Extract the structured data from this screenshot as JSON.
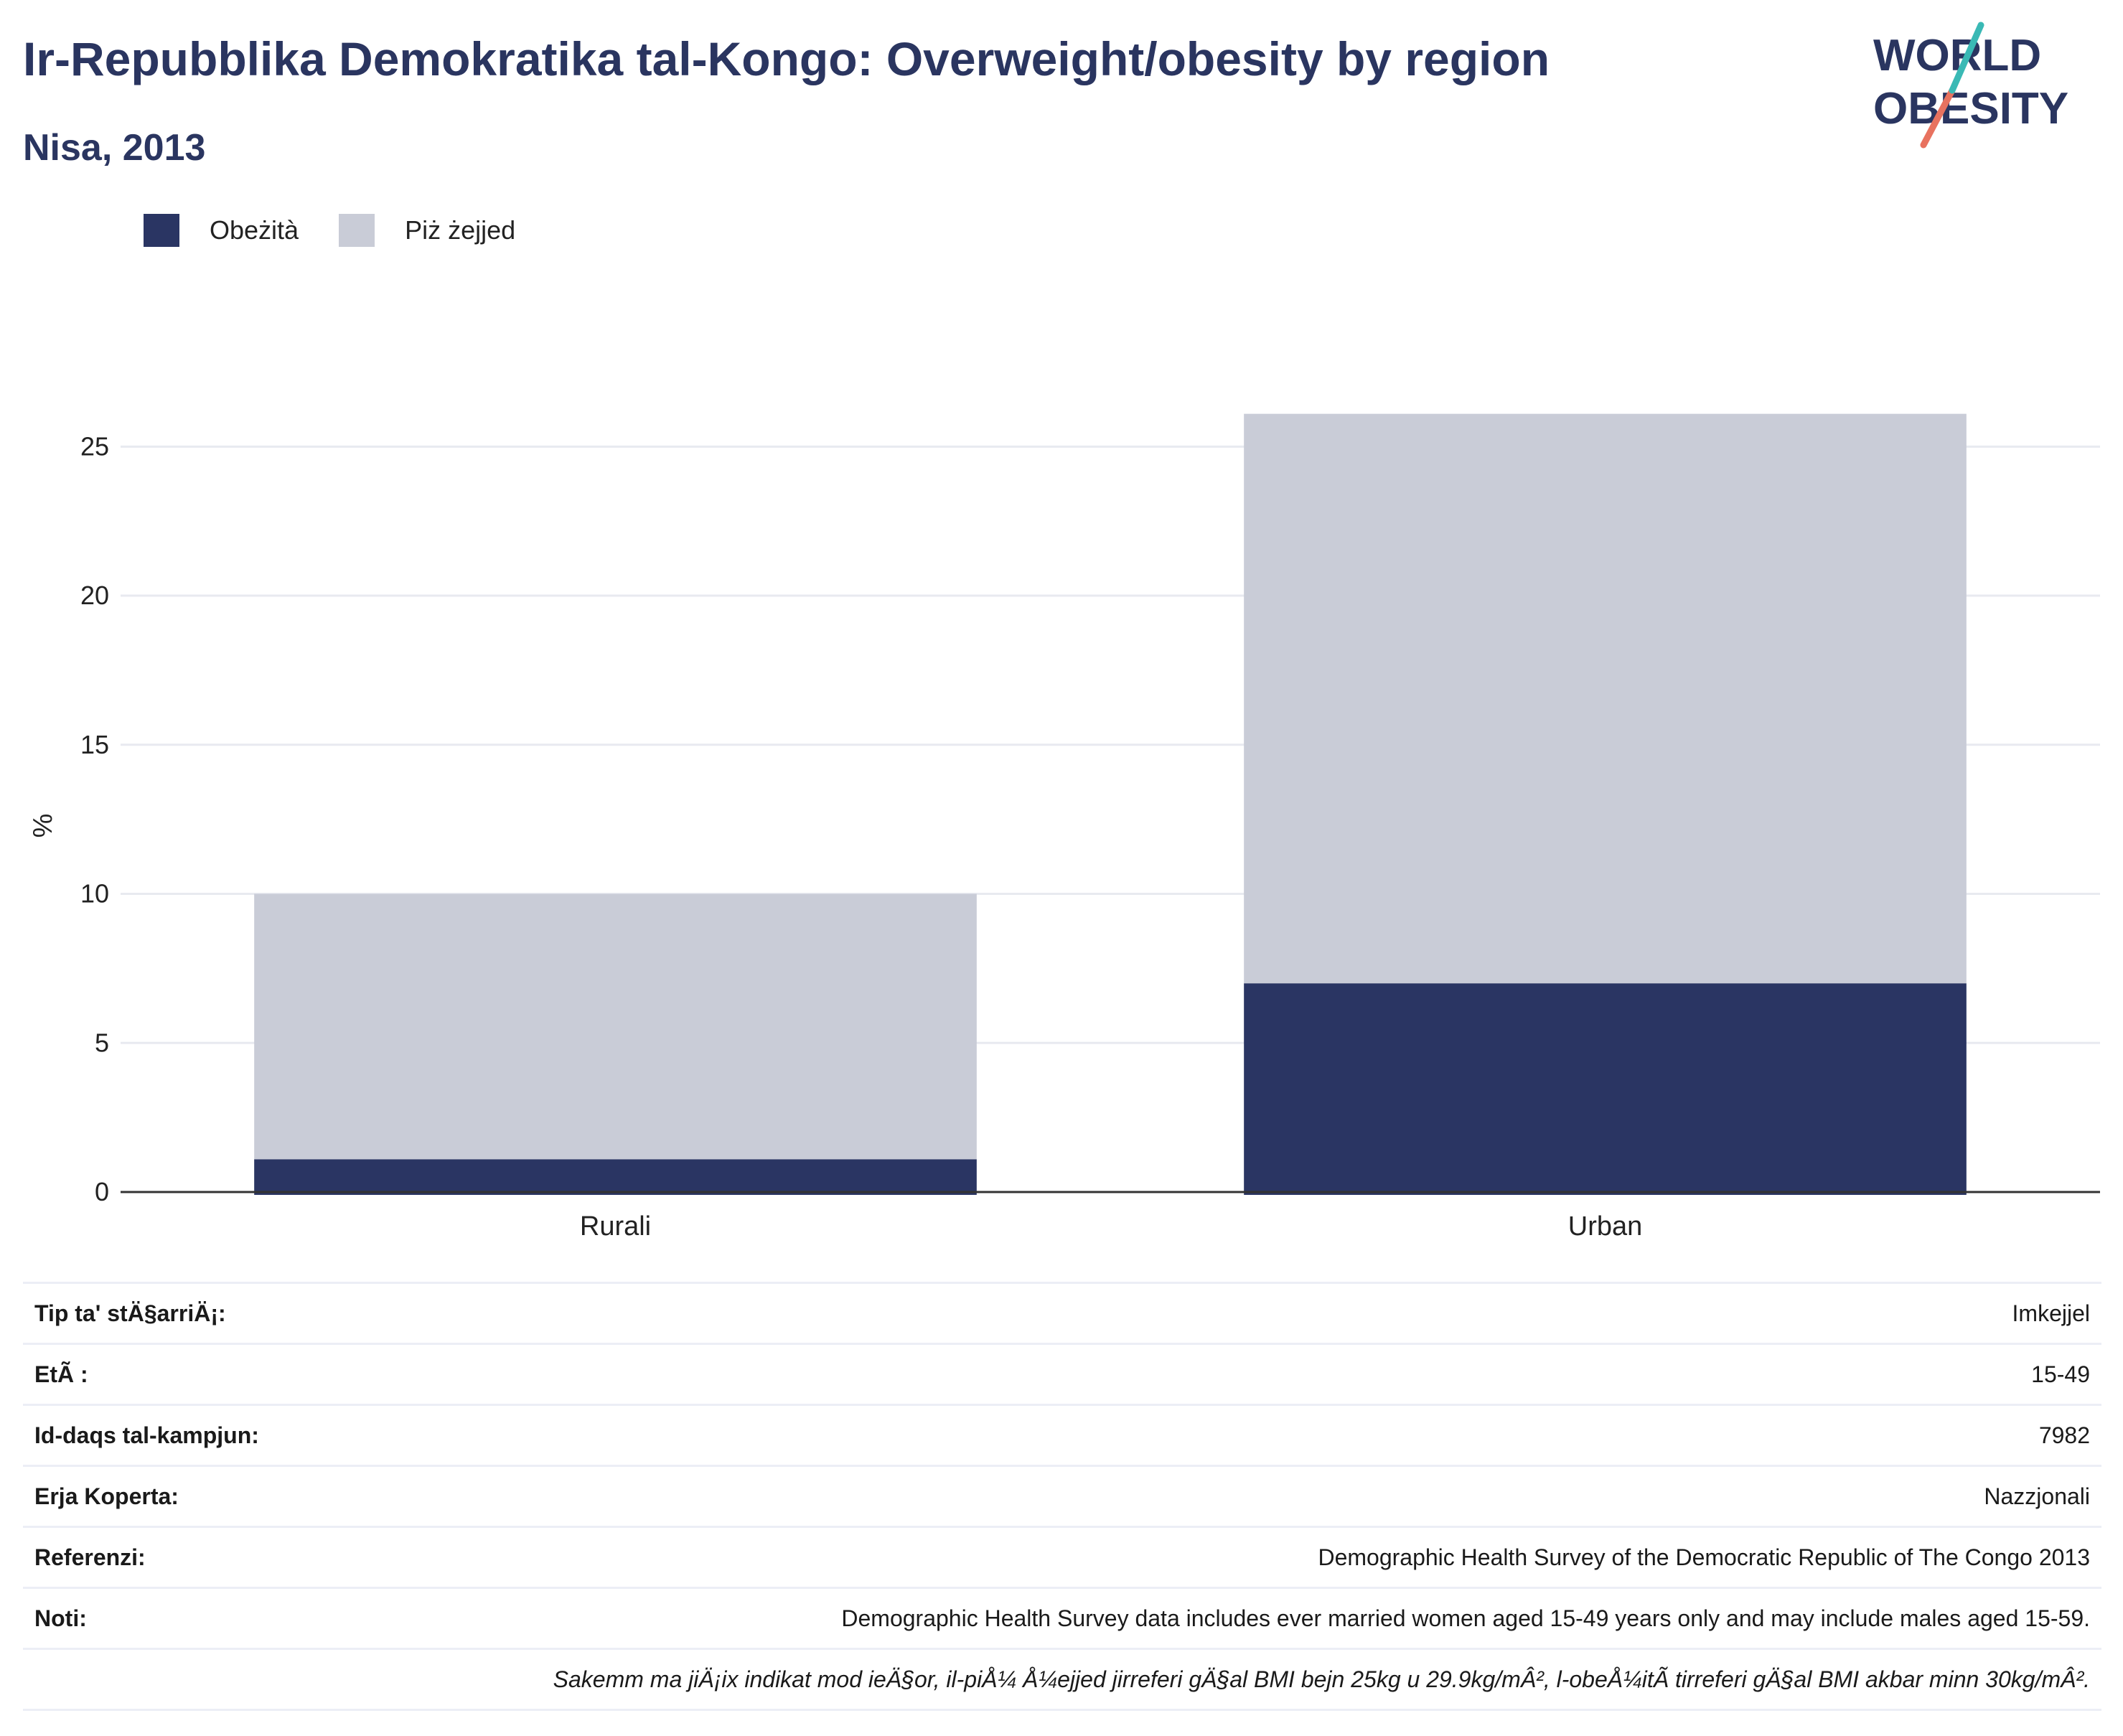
{
  "header": {
    "title": "Ir-Repubblika Demokratika tal-Kongo: Overweight/obesity by region",
    "subtitle": "Nisa, 2013",
    "logo_line1": "WORLD",
    "logo_line2": "OBESITY"
  },
  "colors": {
    "obesity": "#2a3563",
    "overweight": "#c9ccd7",
    "text": "#2a3560",
    "logo_teal": "#3ab9b5",
    "logo_coral": "#e8725f"
  },
  "legend": {
    "obesity_label": "Obeżità",
    "overweight_label": "Piż żejjed"
  },
  "chart_data": {
    "type": "bar",
    "stacked": true,
    "categories": [
      "Rurali",
      "Urban"
    ],
    "series": [
      {
        "name": "Obeżità",
        "values": [
          1.1,
          7.0
        ]
      },
      {
        "name": "Piż żejjed",
        "values": [
          8.9,
          19.1
        ]
      }
    ],
    "ylabel": "%",
    "ylim": [
      0,
      26.5
    ],
    "yticks": [
      0,
      5,
      10,
      15,
      20,
      25
    ],
    "grid": true,
    "legend_position": "top-left"
  },
  "info": {
    "rows": [
      {
        "label": "Tip ta' stÄ§arriÄ¡:",
        "value": "Imkejjel"
      },
      {
        "label": "EtÃ :",
        "value": "15-49"
      },
      {
        "label": "Id-daqs tal-kampjun:",
        "value": "7982"
      },
      {
        "label": "Erja Koperta:",
        "value": "Nazzjonali"
      },
      {
        "label": "Referenzi:",
        "value": "Demographic Health Survey of the Democratic Republic of The Congo 2013"
      },
      {
        "label": "Noti:",
        "value": "Demographic Health Survey data includes ever married women aged 15-49 years only and may include males aged 15-59."
      }
    ],
    "footnote": "Sakemm ma jiÄ¡ix indikat mod ieÄ§or, il-piÅ¼ Å¼ejjed jirreferi gÄ§al BMI bejn 25kg u 29.9kg/mÂ², l-obeÅ¼itÃ  tirreferi gÄ§al BMI akbar minn 30kg/mÂ²."
  }
}
